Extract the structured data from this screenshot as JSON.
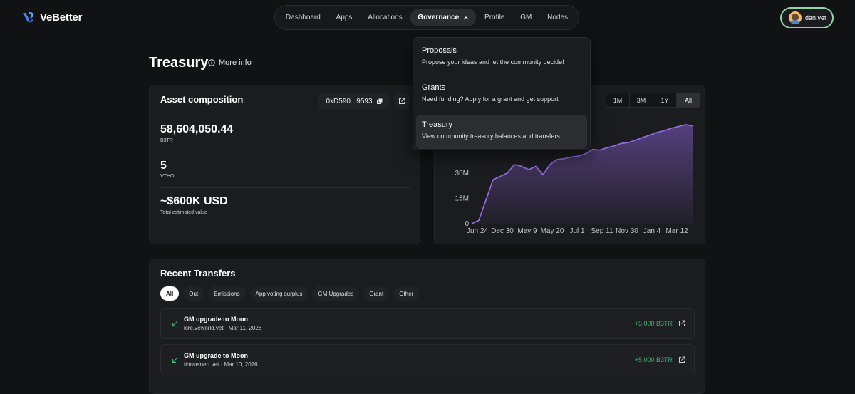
{
  "brand": {
    "name": "VeBetter"
  },
  "nav": {
    "items": [
      "Dashboard",
      "Apps",
      "Allocations",
      "Governance",
      "Profile",
      "GM",
      "Nodes"
    ],
    "active": "Governance"
  },
  "account": {
    "name": "dan.vet"
  },
  "page": {
    "title": "Treasury",
    "more_info": "More info"
  },
  "asset": {
    "title": "Asset composition",
    "address": "0xD590...9593",
    "b3tr_value": "58,604,050.44",
    "b3tr_label": "B3TR",
    "vtho_value": "5",
    "vtho_label": "VTHO",
    "usd_value": "~$600K USD",
    "usd_label": "Total estimated value"
  },
  "dropdown": {
    "items": [
      {
        "title": "Proposals",
        "desc": "Propose your ideas and let the community decide!"
      },
      {
        "title": "Grants",
        "desc": "Need funding? Apply for a grant and get support"
      },
      {
        "title": "Treasury",
        "desc": "View community treasury balances and transfers"
      }
    ],
    "active": "Treasury"
  },
  "ranges": {
    "items": [
      "1M",
      "3M",
      "1Y",
      "All"
    ],
    "active": "All"
  },
  "chart_data": {
    "type": "area",
    "x_ticks": [
      "Jun 24",
      "Dec 30",
      "May 9",
      "May 20",
      "Jul 1",
      "Sep 11",
      "Nov 30",
      "Jan 4",
      "Mar 12"
    ],
    "y_ticks": [
      "0",
      "15M",
      "30M"
    ],
    "ylim": [
      0,
      58600000
    ],
    "series": [
      {
        "color": "#9b6cf0",
        "values": [
          0,
          2000000,
          14000000,
          26000000,
          28000000,
          30000000,
          35000000,
          34000000,
          32000000,
          34000000,
          29000000,
          35000000,
          38000000,
          38500000,
          39500000,
          40000000,
          41500000,
          44000000,
          43500000,
          45000000,
          46000000,
          47500000,
          48000000,
          49500000,
          51000000,
          52500000,
          54000000,
          55000000,
          56500000,
          57500000,
          58600000,
          58000000
        ]
      }
    ]
  },
  "transfers": {
    "title": "Recent Transfers",
    "filters": [
      "All",
      "Out",
      "Emissions",
      "App voting surplus",
      "GM Upgrades",
      "Grant",
      "Other"
    ],
    "active_filter": "All",
    "rows": [
      {
        "title": "GM upgrade to Moon",
        "subtitle": "kire.veworld.vet · Mar 11, 2026",
        "amount": "+5,000 B3TR"
      },
      {
        "title": "GM upgrade to Moon",
        "subtitle": "timweinert.vet · Mar 10, 2026",
        "amount": "+5,000 B3TR"
      }
    ]
  },
  "colors": {
    "accent": "#9b6cf0",
    "positive": "#3cb371",
    "account_border": "#8fd6a4"
  }
}
